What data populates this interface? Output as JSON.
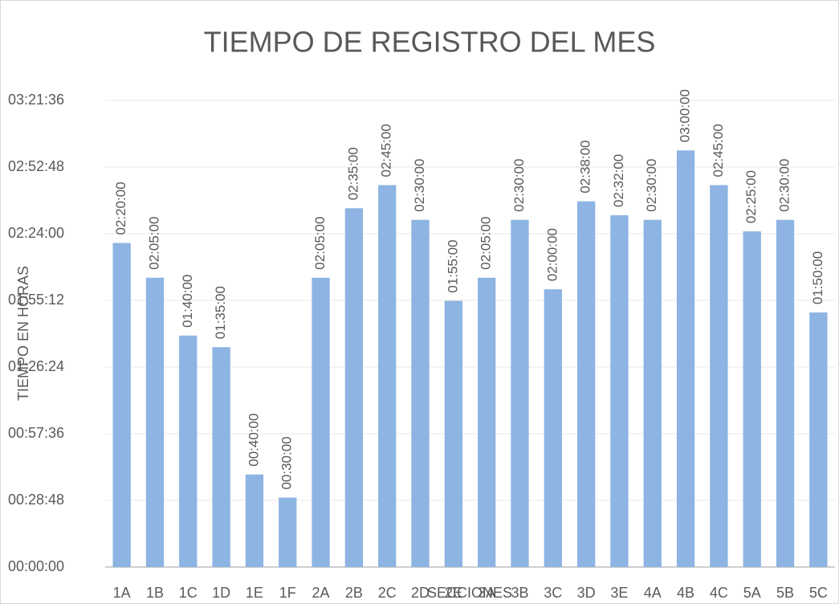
{
  "chart_data": {
    "type": "bar",
    "title": "TIEMPO DE REGISTRO DEL MES",
    "x_label": "SECCIONES",
    "y_label": "TIEMPO EN HORAS",
    "categories": [
      "1A",
      "1B",
      "1C",
      "1D",
      "1E",
      "1F",
      "2A",
      "2B",
      "2C",
      "2D",
      "2E",
      "3A",
      "3B",
      "3C",
      "3D",
      "3E",
      "4A",
      "4B",
      "4C",
      "5A",
      "5B",
      "5C"
    ],
    "values": [
      140,
      125,
      100,
      95,
      40,
      30,
      125,
      155,
      165,
      150,
      115,
      125,
      150,
      120,
      158,
      152,
      150,
      180,
      165,
      145,
      150,
      110
    ],
    "value_labels": [
      "02:20:00",
      "02:05:00",
      "01:40:00",
      "01:35:00",
      "00:40:00",
      "00:30:00",
      "02:05:00",
      "02:35:00",
      "02:45:00",
      "02:30:00",
      "01:55:00",
      "02:05:00",
      "02:30:00",
      "02:00:00",
      "02:38:00",
      "02:32:00",
      "02:30:00",
      "03:00:00",
      "02:45:00",
      "02:25:00",
      "02:30:00",
      "01:50:00"
    ],
    "color": "#8db4e2",
    "ylim": [
      0,
      201.6
    ],
    "yticks": [
      {
        "value": 0,
        "label": "00:00:00"
      },
      {
        "value": 28.8,
        "label": "00:28:48"
      },
      {
        "value": 57.6,
        "label": "00:57:36"
      },
      {
        "value": 86.4,
        "label": "01:26:24"
      },
      {
        "value": 115.2,
        "label": "01:55:12"
      },
      {
        "value": 144,
        "label": "02:24:00"
      },
      {
        "value": 172.8,
        "label": "02:52:48"
      },
      {
        "value": 201.6,
        "label": "03:21:36"
      }
    ],
    "grid": true
  }
}
